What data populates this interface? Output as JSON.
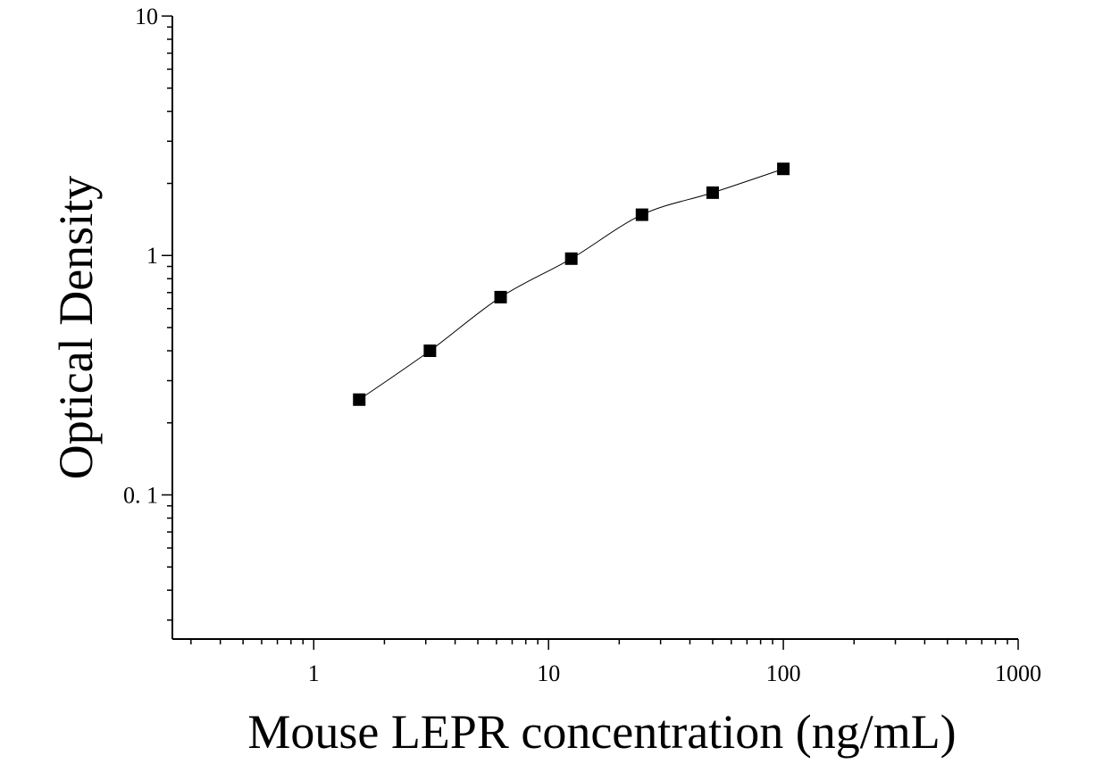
{
  "chart_data": {
    "type": "scatter",
    "title": "",
    "xlabel": "Mouse LEPR concentration (ng/mL)",
    "ylabel": "Optical Density",
    "xscale": "log",
    "yscale": "log",
    "xlim": [
      0.25,
      1000
    ],
    "ylim": [
      0.025,
      10
    ],
    "x_tick_labels": [
      {
        "value": 1,
        "label": "1"
      },
      {
        "value": 10,
        "label": "10"
      },
      {
        "value": 100,
        "label": "100"
      },
      {
        "value": 1000,
        "label": "1000"
      }
    ],
    "y_tick_labels": [
      {
        "value": 0.1,
        "label": "0. 1"
      },
      {
        "value": 1,
        "label": "1"
      },
      {
        "value": 10,
        "label": "10"
      }
    ],
    "grid": false,
    "legend": "none",
    "series": [
      {
        "marker": "square",
        "fit_line": true,
        "x": [
          1.5625,
          3.125,
          6.25,
          12.5,
          25,
          50,
          100
        ],
        "y": [
          0.25,
          0.4,
          0.67,
          0.97,
          1.48,
          1.83,
          2.3
        ]
      }
    ],
    "colors": {
      "axis": "#000000",
      "marker": "#000000",
      "line": "#000000"
    }
  }
}
